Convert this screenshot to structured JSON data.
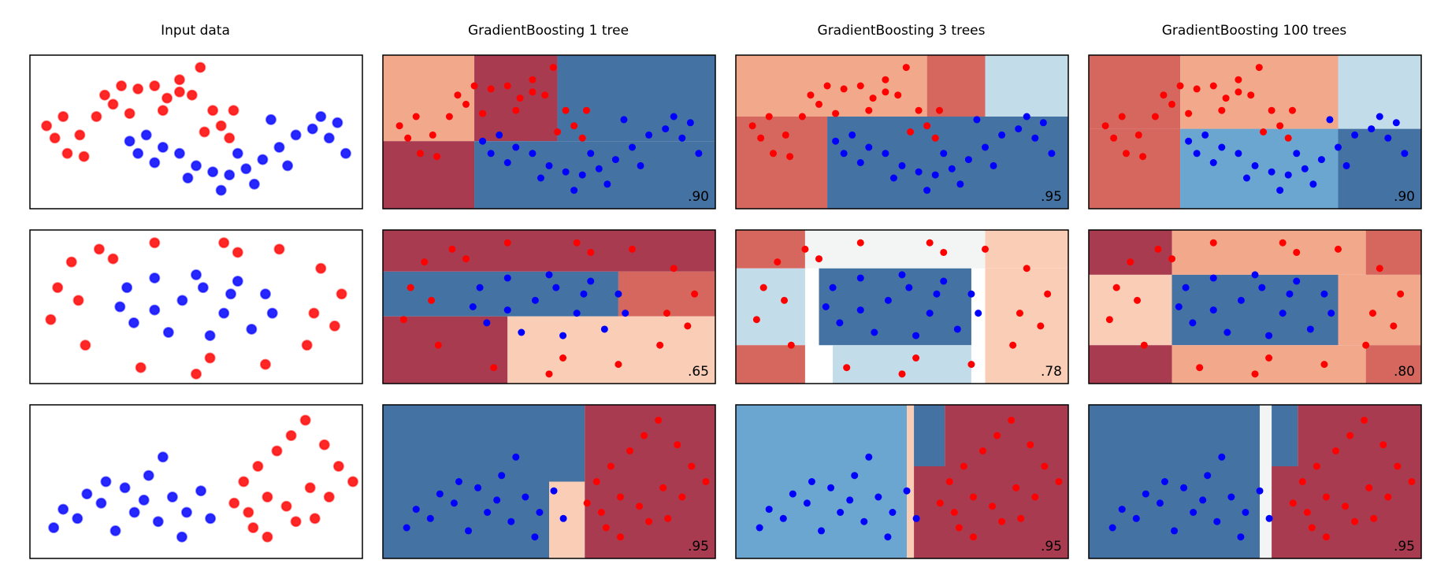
{
  "figure": {
    "column_titles": [
      "Input data",
      "GradientBoosting 1 tree",
      "GradientBoosting 3 trees",
      "GradientBoosting 100 trees"
    ]
  },
  "colors": {
    "red_point": "#ff0000",
    "blue_point": "#0000ff",
    "region_dark_red": "#a83b50",
    "region_red": "#d5675f",
    "region_salmon": "#f2a88b",
    "region_peach": "#f9cdb6",
    "region_white": "#f3f5f4",
    "region_light_blue": "#c3dcea",
    "region_mid_blue": "#6aa6cf",
    "region_dark_blue": "#4472a2"
  },
  "chart_data": [
    {
      "type": "scatter",
      "dataset": "moons",
      "column": "Input data",
      "xlim": [
        -1.5,
        2.5
      ],
      "ylim": [
        -1.0,
        1.5
      ],
      "red_points": [
        [
          -1.3,
          0.35
        ],
        [
          -1.2,
          0.15
        ],
        [
          -1.05,
          -0.1
        ],
        [
          -0.9,
          0.2
        ],
        [
          -0.7,
          0.5
        ],
        [
          -0.6,
          0.85
        ],
        [
          -0.4,
          1.0
        ],
        [
          -0.2,
          0.95
        ],
        [
          0.0,
          1.0
        ],
        [
          0.15,
          0.8
        ],
        [
          0.3,
          0.9
        ],
        [
          0.45,
          0.85
        ],
        [
          0.55,
          1.3
        ],
        [
          0.7,
          0.6
        ],
        [
          0.8,
          0.35
        ],
        [
          0.95,
          0.6
        ],
        [
          -0.5,
          0.7
        ],
        [
          -0.3,
          0.55
        ],
        [
          0.1,
          0.6
        ],
        [
          0.6,
          0.25
        ],
        [
          -1.1,
          0.5
        ],
        [
          -0.85,
          -0.15
        ],
        [
          0.3,
          1.1
        ],
        [
          0.9,
          0.15
        ]
      ],
      "blue_points": [
        [
          -0.3,
          0.1
        ],
        [
          -0.1,
          0.2
        ],
        [
          0.1,
          0.0
        ],
        [
          0.3,
          -0.1
        ],
        [
          0.5,
          -0.3
        ],
        [
          0.7,
          -0.4
        ],
        [
          0.9,
          -0.45
        ],
        [
          1.1,
          -0.35
        ],
        [
          1.3,
          -0.2
        ],
        [
          1.5,
          0.0
        ],
        [
          1.7,
          0.2
        ],
        [
          1.9,
          0.3
        ],
        [
          2.1,
          0.15
        ],
        [
          2.3,
          -0.1
        ],
        [
          2.0,
          0.5
        ],
        [
          1.6,
          -0.3
        ],
        [
          1.2,
          -0.6
        ],
        [
          0.8,
          -0.7
        ],
        [
          0.4,
          -0.5
        ],
        [
          0.0,
          -0.25
        ],
        [
          -0.2,
          -0.1
        ],
        [
          1.4,
          0.45
        ],
        [
          2.2,
          0.4
        ],
        [
          1.0,
          -0.1
        ]
      ]
    },
    {
      "type": "scatter",
      "dataset": "moons",
      "column": "GradientBoosting 1 tree",
      "score": ".90",
      "xlim": [
        -1.5,
        2.5
      ],
      "ylim": [
        -1.0,
        1.5
      ],
      "regions": [
        {
          "x0": -1.5,
          "x1": -0.4,
          "y0": 0.1,
          "y1": 1.5,
          "color": "#f2a88b"
        },
        {
          "x0": -0.4,
          "x1": 0.6,
          "y0": 0.1,
          "y1": 1.5,
          "color": "#a83b50"
        },
        {
          "x0": 0.6,
          "x1": 2.5,
          "y0": 0.1,
          "y1": 1.5,
          "color": "#4472a2"
        },
        {
          "x0": -1.5,
          "x1": -0.4,
          "y0": -1.0,
          "y1": 0.1,
          "color": "#a83b50"
        },
        {
          "x0": -0.4,
          "x1": 2.5,
          "y0": -1.0,
          "y1": 0.1,
          "color": "#4472a2"
        }
      ]
    },
    {
      "type": "scatter",
      "dataset": "moons",
      "column": "GradientBoosting 3 trees",
      "score": ".95",
      "xlim": [
        -1.5,
        2.5
      ],
      "ylim": [
        -1.0,
        1.5
      ],
      "regions": [
        {
          "x0": -1.5,
          "x1": 0.8,
          "y0": 0.5,
          "y1": 1.5,
          "color": "#f2a88b"
        },
        {
          "x0": 0.8,
          "x1": 1.5,
          "y0": 0.5,
          "y1": 1.5,
          "color": "#d5675f"
        },
        {
          "x0": 1.5,
          "x1": 2.5,
          "y0": 0.5,
          "y1": 1.5,
          "color": "#c3dcea"
        },
        {
          "x0": -1.5,
          "x1": -0.4,
          "y0": -1.0,
          "y1": 0.5,
          "color": "#d5675f"
        },
        {
          "x0": -0.4,
          "x1": 1.5,
          "y0": -1.0,
          "y1": 0.5,
          "color": "#4472a2"
        },
        {
          "x0": 1.5,
          "x1": 2.5,
          "y0": -1.0,
          "y1": 0.5,
          "color": "#4472a2"
        }
      ]
    },
    {
      "type": "scatter",
      "dataset": "moons",
      "column": "GradientBoosting 100 trees",
      "score": ".90",
      "xlim": [
        -1.5,
        2.5
      ],
      "ylim": [
        -1.0,
        1.5
      ],
      "regions": [
        {
          "x0": -1.5,
          "x1": -0.4,
          "y0": 0.3,
          "y1": 1.5,
          "color": "#d5675f"
        },
        {
          "x0": -0.4,
          "x1": 1.5,
          "y0": 0.3,
          "y1": 1.5,
          "color": "#f2a88b"
        },
        {
          "x0": 1.5,
          "x1": 2.5,
          "y0": 0.3,
          "y1": 1.5,
          "color": "#c3dcea"
        },
        {
          "x0": -1.5,
          "x1": -0.4,
          "y0": -1.0,
          "y1": 0.3,
          "color": "#d5675f"
        },
        {
          "x0": -0.4,
          "x1": 1.5,
          "y0": -1.0,
          "y1": 0.3,
          "color": "#6aa6cf"
        },
        {
          "x0": 1.5,
          "x1": 2.5,
          "y0": -1.0,
          "y1": 0.3,
          "color": "#4472a2"
        }
      ]
    },
    {
      "type": "scatter",
      "dataset": "circles",
      "column": "Input data",
      "xlim": [
        -1.2,
        1.2
      ],
      "ylim": [
        -1.2,
        1.2
      ],
      "red_points": [
        [
          -1.0,
          0.3
        ],
        [
          -0.9,
          0.7
        ],
        [
          -0.7,
          0.9
        ],
        [
          -0.3,
          1.0
        ],
        [
          0.2,
          1.0
        ],
        [
          0.6,
          0.9
        ],
        [
          0.9,
          0.6
        ],
        [
          1.05,
          0.2
        ],
        [
          1.0,
          -0.3
        ],
        [
          0.8,
          -0.6
        ],
        [
          0.5,
          -0.9
        ],
        [
          0.0,
          -1.05
        ],
        [
          -0.4,
          -0.95
        ],
        [
          -0.8,
          -0.6
        ],
        [
          -1.05,
          -0.2
        ],
        [
          0.3,
          0.85
        ],
        [
          -0.6,
          0.75
        ],
        [
          0.85,
          -0.1
        ],
        [
          -0.85,
          0.1
        ],
        [
          0.1,
          -0.8
        ]
      ],
      "blue_points": [
        [
          -0.5,
          0.3
        ],
        [
          -0.3,
          0.45
        ],
        [
          0.0,
          0.5
        ],
        [
          0.3,
          0.4
        ],
        [
          0.5,
          0.2
        ],
        [
          0.55,
          -0.1
        ],
        [
          0.4,
          -0.35
        ],
        [
          0.1,
          -0.45
        ],
        [
          -0.2,
          -0.4
        ],
        [
          -0.45,
          -0.25
        ],
        [
          -0.55,
          0.0
        ],
        [
          -0.1,
          0.1
        ],
        [
          0.2,
          -0.1
        ],
        [
          0.25,
          0.2
        ],
        [
          -0.3,
          -0.05
        ],
        [
          0.05,
          0.3
        ]
      ]
    },
    {
      "type": "scatter",
      "dataset": "circles",
      "column": "GradientBoosting 1 tree",
      "score": ".65",
      "xlim": [
        -1.2,
        1.2
      ],
      "ylim": [
        -1.2,
        1.2
      ],
      "regions": [
        {
          "x0": -1.2,
          "x1": 1.2,
          "y0": 0.55,
          "y1": 1.2,
          "color": "#a83b50"
        },
        {
          "x0": -1.2,
          "x1": 0.5,
          "y0": -0.15,
          "y1": 0.55,
          "color": "#4472a2"
        },
        {
          "x0": 0.5,
          "x1": 1.2,
          "y0": -0.15,
          "y1": 0.55,
          "color": "#d5675f"
        },
        {
          "x0": -1.2,
          "x1": -0.3,
          "y0": -1.2,
          "y1": -0.15,
          "color": "#a83b50"
        },
        {
          "x0": -0.3,
          "x1": 1.2,
          "y0": -1.2,
          "y1": -0.15,
          "color": "#f9cdb6"
        }
      ]
    },
    {
      "type": "scatter",
      "dataset": "circles",
      "column": "GradientBoosting 3 trees",
      "score": ".78",
      "xlim": [
        -1.2,
        1.2
      ],
      "ylim": [
        -1.2,
        1.2
      ],
      "regions": [
        {
          "x0": -1.2,
          "x1": -0.7,
          "y0": 0.6,
          "y1": 1.2,
          "color": "#d5675f"
        },
        {
          "x0": -0.7,
          "x1": 0.6,
          "y0": 0.6,
          "y1": 1.2,
          "color": "#f3f5f4"
        },
        {
          "x0": 0.6,
          "x1": 1.2,
          "y0": 0.6,
          "y1": 1.2,
          "color": "#f9cdb6"
        },
        {
          "x0": -1.2,
          "x1": -0.7,
          "y0": -0.6,
          "y1": 0.6,
          "color": "#c3dcea"
        },
        {
          "x0": -0.6,
          "x1": 0.5,
          "y0": -0.6,
          "y1": 0.6,
          "color": "#4472a2"
        },
        {
          "x0": 0.6,
          "x1": 1.2,
          "y0": -1.2,
          "y1": 0.6,
          "color": "#f9cdb6"
        },
        {
          "x0": -1.2,
          "x1": -0.7,
          "y0": -1.2,
          "y1": -0.6,
          "color": "#d5675f"
        },
        {
          "x0": -0.5,
          "x1": 0.5,
          "y0": -1.2,
          "y1": -0.6,
          "color": "#c3dcea"
        }
      ]
    },
    {
      "type": "scatter",
      "dataset": "circles",
      "column": "GradientBoosting 100 trees",
      "score": ".80",
      "xlim": [
        -1.2,
        1.2
      ],
      "ylim": [
        -1.2,
        1.2
      ],
      "regions": [
        {
          "x0": -1.2,
          "x1": -0.6,
          "y0": 0.5,
          "y1": 1.2,
          "color": "#a83b50"
        },
        {
          "x0": -0.6,
          "x1": 0.8,
          "y0": 0.5,
          "y1": 1.2,
          "color": "#f2a88b"
        },
        {
          "x0": 0.8,
          "x1": 1.2,
          "y0": 0.5,
          "y1": 1.2,
          "color": "#d5675f"
        },
        {
          "x0": -1.2,
          "x1": -0.6,
          "y0": -0.6,
          "y1": 0.5,
          "color": "#f9cdb6"
        },
        {
          "x0": -0.6,
          "x1": 0.6,
          "y0": -0.6,
          "y1": 0.5,
          "color": "#4472a2"
        },
        {
          "x0": 0.6,
          "x1": 1.2,
          "y0": -0.6,
          "y1": 0.5,
          "color": "#f2a88b"
        },
        {
          "x0": -1.2,
          "x1": -0.6,
          "y0": -1.2,
          "y1": -0.6,
          "color": "#a83b50"
        },
        {
          "x0": -0.6,
          "x1": 0.8,
          "y0": -1.2,
          "y1": -0.6,
          "color": "#f2a88b"
        },
        {
          "x0": 0.8,
          "x1": 1.2,
          "y0": -1.2,
          "y1": -0.6,
          "color": "#d5675f"
        }
      ]
    },
    {
      "type": "scatter",
      "dataset": "linear",
      "column": "Input data",
      "xlim": [
        -3.0,
        4.0
      ],
      "ylim": [
        -1.5,
        3.5
      ],
      "red_points": [
        [
          1.5,
          1.0
        ],
        [
          1.8,
          1.5
        ],
        [
          2.2,
          2.0
        ],
        [
          2.5,
          2.5
        ],
        [
          2.8,
          3.0
        ],
        [
          3.2,
          2.2
        ],
        [
          3.5,
          1.5
        ],
        [
          3.8,
          1.0
        ],
        [
          2.0,
          0.5
        ],
        [
          1.6,
          0.0
        ],
        [
          2.4,
          0.2
        ],
        [
          2.9,
          0.8
        ],
        [
          3.3,
          0.5
        ],
        [
          2.6,
          -0.3
        ],
        [
          2.0,
          -0.8
        ],
        [
          1.3,
          0.3
        ],
        [
          1.7,
          -0.5
        ],
        [
          3.0,
          -0.2
        ]
      ],
      "blue_points": [
        [
          -2.5,
          -0.5
        ],
        [
          -2.0,
          -0.2
        ],
        [
          -1.5,
          0.3
        ],
        [
          -1.0,
          0.8
        ],
        [
          -0.5,
          1.2
        ],
        [
          0.0,
          0.5
        ],
        [
          0.3,
          0.0
        ],
        [
          -0.3,
          -0.3
        ],
        [
          -0.8,
          0.0
        ],
        [
          -1.2,
          -0.6
        ],
        [
          0.6,
          0.7
        ],
        [
          -0.2,
          1.8
        ],
        [
          -1.8,
          0.6
        ],
        [
          0.2,
          -0.8
        ],
        [
          -0.6,
          0.4
        ],
        [
          0.8,
          -0.2
        ],
        [
          -1.4,
          1.0
        ],
        [
          -2.3,
          0.1
        ]
      ]
    },
    {
      "type": "scatter",
      "dataset": "linear",
      "column": "GradientBoosting 1 tree",
      "score": ".95",
      "xlim": [
        -3.0,
        4.0
      ],
      "ylim": [
        -1.5,
        3.5
      ],
      "regions": [
        {
          "x0": -3.0,
          "x1": 1.25,
          "y0": -1.5,
          "y1": 3.5,
          "color": "#4472a2"
        },
        {
          "x0": 1.25,
          "x1": 4.0,
          "y0": -1.5,
          "y1": 3.5,
          "color": "#a83b50"
        },
        {
          "x0": 0.5,
          "x1": 1.25,
          "y0": -1.5,
          "y1": 1.0,
          "color": "#f9cdb6"
        }
      ]
    },
    {
      "type": "scatter",
      "dataset": "linear",
      "column": "GradientBoosting 3 trees",
      "score": ".95",
      "xlim": [
        -3.0,
        4.0
      ],
      "ylim": [
        -1.5,
        3.5
      ],
      "regions": [
        {
          "x0": -3.0,
          "x1": 0.6,
          "y0": -1.5,
          "y1": 3.5,
          "color": "#6aa6cf"
        },
        {
          "x0": 0.6,
          "x1": 0.75,
          "y0": -1.5,
          "y1": 3.5,
          "color": "#f9cdb6"
        },
        {
          "x0": 0.75,
          "x1": 1.4,
          "y0": 1.5,
          "y1": 3.5,
          "color": "#4472a2"
        },
        {
          "x0": 0.75,
          "x1": 4.0,
          "y0": -1.5,
          "y1": 1.5,
          "color": "#a83b50"
        },
        {
          "x0": 1.4,
          "x1": 4.0,
          "y0": 1.5,
          "y1": 3.5,
          "color": "#a83b50"
        }
      ]
    },
    {
      "type": "scatter",
      "dataset": "linear",
      "column": "GradientBoosting 100 trees",
      "score": ".95",
      "xlim": [
        -3.0,
        4.0
      ],
      "ylim": [
        -1.5,
        3.5
      ],
      "regions": [
        {
          "x0": -3.0,
          "x1": 0.6,
          "y0": -1.5,
          "y1": 3.5,
          "color": "#4472a2"
        },
        {
          "x0": 0.6,
          "x1": 0.85,
          "y0": -1.5,
          "y1": 3.5,
          "color": "#f3f5f4"
        },
        {
          "x0": 0.85,
          "x1": 1.4,
          "y0": 1.5,
          "y1": 3.5,
          "color": "#4472a2"
        },
        {
          "x0": 0.85,
          "x1": 4.0,
          "y0": -1.5,
          "y1": 1.5,
          "color": "#a83b50"
        },
        {
          "x0": 1.4,
          "x1": 4.0,
          "y0": 1.5,
          "y1": 3.5,
          "color": "#a83b50"
        }
      ]
    }
  ]
}
